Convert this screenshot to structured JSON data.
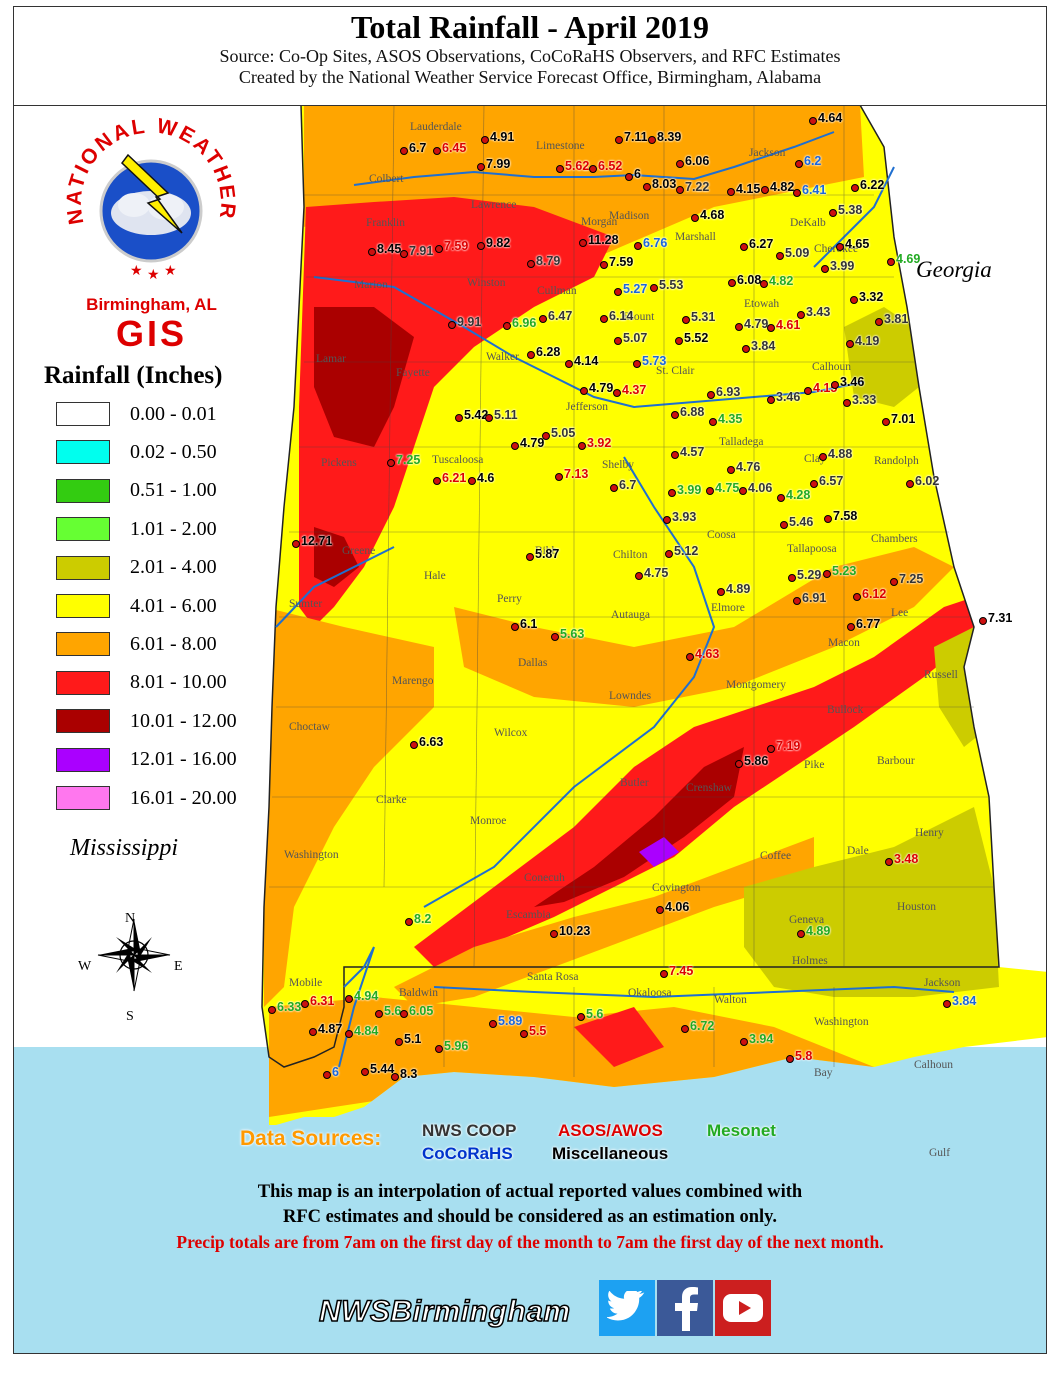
{
  "header": {
    "title": "Total Rainfall - April 2019",
    "source": "Source: Co-Op Sites, ASOS Observations, CoCoRaHS Observers, and RFC Estimates",
    "created": "Created by the National Weather Service Forecast Office, Birmingham, Alabama"
  },
  "logo": {
    "ring_text": "NATIONAL WEATHER SERVICE",
    "office": "Birmingham, AL",
    "gis": "GIS"
  },
  "legend": {
    "title": "Rainfall (Inches)",
    "items": [
      {
        "label": "0.00 - 0.01",
        "color": "#ffffff"
      },
      {
        "label": "0.02 - 0.50",
        "color": "#00ffee"
      },
      {
        "label": "0.51 - 1.00",
        "color": "#33cc11"
      },
      {
        "label": "1.01 - 2.00",
        "color": "#66ff33"
      },
      {
        "label": "2.01 - 4.00",
        "color": "#cccc00"
      },
      {
        "label": "4.01 - 6.00",
        "color": "#ffff00"
      },
      {
        "label": "6.01 - 8.00",
        "color": "#ffa500"
      },
      {
        "label": "8.01 - 10.00",
        "color": "#ff1a1a"
      },
      {
        "label": "10.01 - 12.00",
        "color": "#aa0000"
      },
      {
        "label": "12.01 - 16.00",
        "color": "#aa00ff"
      },
      {
        "label": "16.01 - 20.00",
        "color": "#ff77ee"
      }
    ]
  },
  "states": {
    "mississippi": "Mississippi",
    "georgia": "Georgia"
  },
  "compass": {
    "n": "N",
    "s": "S",
    "e": "E",
    "w": "W"
  },
  "counties": [
    "Lauderdale",
    "Limestone",
    "Madison",
    "Jackson",
    "Colbert",
    "Lawrence",
    "Morgan",
    "Marshall",
    "DeKalb",
    "Franklin",
    "Cherokee",
    "Marion",
    "Winston",
    "Cullman",
    "Etowah",
    "Blount",
    "Lamar",
    "Fayette",
    "Walker",
    "Calhoun",
    "St. Clair",
    "Jefferson",
    "Talladega",
    "Pickens",
    "Tuscaloosa",
    "Shelby",
    "Clay",
    "Randolph",
    "Bibb",
    "Coosa",
    "Tallapoosa",
    "Chambers",
    "Greene",
    "Hale",
    "Chilton",
    "Perry",
    "Autauga",
    "Elmore",
    "Lee",
    "Sumter",
    "Dallas",
    "Macon",
    "Russell",
    "Marengo",
    "Lowndes",
    "Montgomery",
    "Bullock",
    "Choctaw",
    "Wilcox",
    "Butler",
    "Crenshaw",
    "Pike",
    "Barbour",
    "Clarke",
    "Monroe",
    "Henry",
    "Washington",
    "Conecuh",
    "Coffee",
    "Dale",
    "Covington",
    "Escambia",
    "Geneva",
    "Houston",
    "Holmes",
    "Mobile",
    "Baldwin",
    "Santa Rosa",
    "Okaloosa",
    "Walton",
    "Jackson",
    "Washington",
    "Calhoun",
    "Gulf",
    "Bay"
  ],
  "observations": [
    {
      "v": "4.64",
      "t": "misc"
    },
    {
      "v": "4.91",
      "t": "misc"
    },
    {
      "v": "6.7",
      "t": "misc"
    },
    {
      "v": "6.45",
      "t": "asos"
    },
    {
      "v": "7.99",
      "t": "misc"
    },
    {
      "v": "7.11",
      "t": "misc"
    },
    {
      "v": "8.39",
      "t": "misc"
    },
    {
      "v": "5.62",
      "t": "asos"
    },
    {
      "v": "6.52",
      "t": "asos"
    },
    {
      "v": "6",
      "t": "misc"
    },
    {
      "v": "6.06",
      "t": "misc"
    },
    {
      "v": "8.03",
      "t": "misc"
    },
    {
      "v": "7.22",
      "t": "coop"
    },
    {
      "v": "4.15",
      "t": "misc"
    },
    {
      "v": "4.82",
      "t": "misc"
    },
    {
      "v": "6.2",
      "t": "cocorahs"
    },
    {
      "v": "6.41",
      "t": "cocorahs"
    },
    {
      "v": "6.22",
      "t": "misc"
    },
    {
      "v": "5.38",
      "t": "coop"
    },
    {
      "v": "4.68",
      "t": "misc"
    },
    {
      "v": "8.45",
      "t": "misc"
    },
    {
      "v": "7.91",
      "t": "coop"
    },
    {
      "v": "7.59",
      "t": "asos"
    },
    {
      "v": "9.82",
      "t": "misc"
    },
    {
      "v": "11.28",
      "t": "misc"
    },
    {
      "v": "6.76",
      "t": "cocorahs"
    },
    {
      "v": "6.27",
      "t": "misc"
    },
    {
      "v": "5.09",
      "t": "coop"
    },
    {
      "v": "4.65",
      "t": "misc"
    },
    {
      "v": "4.69",
      "t": "mesonet"
    },
    {
      "v": "8.79",
      "t": "coop"
    },
    {
      "v": "7.59",
      "t": "misc"
    },
    {
      "v": "6.08",
      "t": "misc"
    },
    {
      "v": "4.82",
      "t": "mesonet"
    },
    {
      "v": "3.99",
      "t": "coop"
    },
    {
      "v": "5.27",
      "t": "cocorahs"
    },
    {
      "v": "5.53",
      "t": "coop"
    },
    {
      "v": "3.32",
      "t": "misc"
    },
    {
      "v": "9.91",
      "t": "coop"
    },
    {
      "v": "6.96",
      "t": "mesonet"
    },
    {
      "v": "6.47",
      "t": "coop"
    },
    {
      "v": "6.14",
      "t": "coop"
    },
    {
      "v": "5.31",
      "t": "coop"
    },
    {
      "v": "4.79",
      "t": "coop"
    },
    {
      "v": "4.61",
      "t": "asos"
    },
    {
      "v": "3.43",
      "t": "coop"
    },
    {
      "v": "3.81",
      "t": "coop"
    },
    {
      "v": "6.28",
      "t": "misc"
    },
    {
      "v": "5.07",
      "t": "coop"
    },
    {
      "v": "5.52",
      "t": "misc"
    },
    {
      "v": "3.84",
      "t": "coop"
    },
    {
      "v": "4.19",
      "t": "coop"
    },
    {
      "v": "4.14",
      "t": "misc"
    },
    {
      "v": "5.73",
      "t": "cocorahs"
    },
    {
      "v": "4.79",
      "t": "misc"
    },
    {
      "v": "4.37",
      "t": "asos"
    },
    {
      "v": "6.93",
      "t": "coop"
    },
    {
      "v": "3.46",
      "t": "coop"
    },
    {
      "v": "4.15",
      "t": "asos"
    },
    {
      "v": "3.46",
      "t": "misc"
    },
    {
      "v": "3.33",
      "t": "coop"
    },
    {
      "v": "5.42",
      "t": "misc"
    },
    {
      "v": "5.11",
      "t": "coop"
    },
    {
      "v": "6.88",
      "t": "coop"
    },
    {
      "v": "7.01",
      "t": "misc"
    },
    {
      "v": "4.35",
      "t": "mesonet"
    },
    {
      "v": "4.79",
      "t": "misc"
    },
    {
      "v": "5.05",
      "t": "coop"
    },
    {
      "v": "3.92",
      "t": "asos"
    },
    {
      "v": "4.57",
      "t": "coop"
    },
    {
      "v": "7.25",
      "t": "mesonet"
    },
    {
      "v": "6.21",
      "t": "asos"
    },
    {
      "v": "4.6",
      "t": "misc"
    },
    {
      "v": "7.13",
      "t": "asos"
    },
    {
      "v": "4.76",
      "t": "coop"
    },
    {
      "v": "4.88",
      "t": "coop"
    },
    {
      "v": "6.57",
      "t": "coop"
    },
    {
      "v": "6.02",
      "t": "coop"
    },
    {
      "v": "6.7",
      "t": "coop"
    },
    {
      "v": "3.99",
      "t": "mesonet"
    },
    {
      "v": "4.75",
      "t": "mesonet"
    },
    {
      "v": "4.06",
      "t": "coop"
    },
    {
      "v": "4.28",
      "t": "mesonet"
    },
    {
      "v": "3.93",
      "t": "coop"
    },
    {
      "v": "5.46",
      "t": "coop"
    },
    {
      "v": "7.58",
      "t": "misc"
    },
    {
      "v": "12.71",
      "t": "misc"
    },
    {
      "v": "5.87",
      "t": "misc"
    },
    {
      "v": "5.12",
      "t": "coop"
    },
    {
      "v": "5.29",
      "t": "coop"
    },
    {
      "v": "5.23",
      "t": "mesonet"
    },
    {
      "v": "4.75",
      "t": "coop"
    },
    {
      "v": "4.89",
      "t": "coop"
    },
    {
      "v": "7.25",
      "t": "coop"
    },
    {
      "v": "6.91",
      "t": "coop"
    },
    {
      "v": "6.12",
      "t": "asos"
    },
    {
      "v": "6.1",
      "t": "misc"
    },
    {
      "v": "5.63",
      "t": "mesonet"
    },
    {
      "v": "7.31",
      "t": "misc"
    },
    {
      "v": "6.77",
      "t": "misc"
    },
    {
      "v": "4.63",
      "t": "asos"
    },
    {
      "v": "6.63",
      "t": "misc"
    },
    {
      "v": "7.19",
      "t": "asos"
    },
    {
      "v": "5.86",
      "t": "misc"
    },
    {
      "v": "3.48",
      "t": "asos"
    },
    {
      "v": "4.06",
      "t": "misc"
    },
    {
      "v": "8.2",
      "t": "mesonet"
    },
    {
      "v": "10.23",
      "t": "misc"
    },
    {
      "v": "4.89",
      "t": "mesonet"
    },
    {
      "v": "7.45",
      "t": "asos"
    },
    {
      "v": "3.84",
      "t": "cocorahs"
    },
    {
      "v": "6.33",
      "t": "mesonet"
    },
    {
      "v": "6.31",
      "t": "asos"
    },
    {
      "v": "4.94",
      "t": "mesonet"
    },
    {
      "v": "5.6",
      "t": "mesonet"
    },
    {
      "v": "6.05",
      "t": "mesonet"
    },
    {
      "v": "4.87",
      "t": "misc"
    },
    {
      "v": "4.84",
      "t": "mesonet"
    },
    {
      "v": "5.1",
      "t": "misc"
    },
    {
      "v": "5.89",
      "t": "cocorahs"
    },
    {
      "v": "5.5",
      "t": "asos"
    },
    {
      "v": "5.6",
      "t": "mesonet"
    },
    {
      "v": "6.72",
      "t": "mesonet"
    },
    {
      "v": "3.94",
      "t": "mesonet"
    },
    {
      "v": "5.96",
      "t": "mesonet"
    },
    {
      "v": "5.8",
      "t": "asos"
    },
    {
      "v": "6",
      "t": "cocorahs"
    },
    {
      "v": "5.44",
      "t": "misc"
    },
    {
      "v": "8.3",
      "t": "misc"
    }
  ],
  "sources": {
    "title": "Data Sources:",
    "coop": "NWS COOP",
    "asos": "ASOS/AWOS",
    "mesonet": "Mesonet",
    "cocorahs": "CoCoRaHS",
    "misc": "Miscellaneous"
  },
  "source_colors": {
    "coop": "#333333",
    "asos": "#dd0000",
    "mesonet": "#22aa22",
    "cocorahs": "#1a66dd",
    "misc": "#000000",
    "cocorahs_label": "#0033cc",
    "title": "#ff9900"
  },
  "disclaimer": {
    "line1": "This map is an interpolation of actual reported values combined with",
    "line2": "RFC estimates and should be considered as an estimation only.",
    "line3": "Precip totals are from 7am on the first day of the month to 7am the first day of the next month."
  },
  "social": {
    "handle": "NWSBirmingham"
  }
}
